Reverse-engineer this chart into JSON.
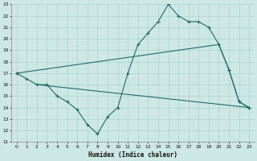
{
  "xlabel": "Humidex (Indice chaleur)",
  "xlim": [
    -0.5,
    23.5
  ],
  "ylim": [
    11,
    23
  ],
  "xticks": [
    0,
    1,
    2,
    3,
    4,
    5,
    6,
    7,
    8,
    9,
    10,
    11,
    12,
    13,
    14,
    15,
    16,
    17,
    18,
    19,
    20,
    21,
    22,
    23
  ],
  "yticks": [
    11,
    12,
    13,
    14,
    15,
    16,
    17,
    18,
    19,
    20,
    21,
    22,
    23
  ],
  "bg_color": "#cde8e4",
  "grid_color": "#a8d5cc",
  "line_color": "#1e6b62",
  "line1_x": [
    0,
    1,
    2,
    3,
    4,
    5,
    6,
    7,
    8,
    9,
    10,
    11,
    12,
    13,
    14,
    15,
    16,
    17,
    18,
    19,
    20,
    21,
    22,
    23
  ],
  "line1_y": [
    17,
    16.5,
    16,
    16,
    15,
    14.5,
    13.8,
    12.5,
    11.7,
    13.2,
    14,
    17,
    19.5,
    20.5,
    21.5,
    23,
    22,
    21.5,
    21.5,
    21,
    19.5,
    17.3,
    14.5,
    14
  ],
  "line2_x": [
    0,
    20,
    21,
    22,
    23
  ],
  "line2_y": [
    17,
    19.5,
    17.3,
    14.5,
    14
  ],
  "line3_x": [
    2,
    23
  ],
  "line3_y": [
    16,
    14
  ]
}
